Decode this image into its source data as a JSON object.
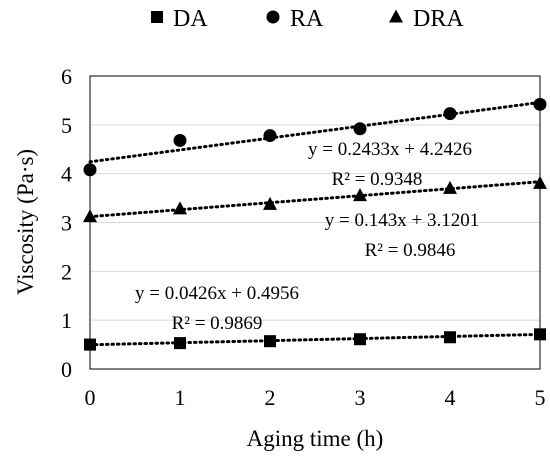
{
  "chart_data": {
    "type": "scatter",
    "xlabel": "Aging time (h)",
    "ylabel": "Viscosity (Pa·s)",
    "xlim": [
      0,
      5
    ],
    "ylim": [
      0,
      6
    ],
    "x_ticks": [
      "0",
      "1",
      "2",
      "3",
      "4",
      "5"
    ],
    "y_ticks": [
      "0",
      "1",
      "2",
      "3",
      "4",
      "5",
      "6"
    ],
    "grid": true,
    "legend_position": "top",
    "series": [
      {
        "name": "DA",
        "marker": "square",
        "x": [
          0,
          1,
          2,
          3,
          4,
          5
        ],
        "values": [
          0.5,
          0.53,
          0.57,
          0.61,
          0.65,
          0.71
        ],
        "trendline": {
          "equation": "y = 0.0426x + 0.4956",
          "r2": "R² = 0.9869",
          "slope": 0.0426,
          "intercept": 0.4956
        }
      },
      {
        "name": "RA",
        "marker": "circle",
        "x": [
          0,
          1,
          2,
          3,
          4,
          5
        ],
        "values": [
          4.08,
          4.68,
          4.78,
          4.92,
          5.23,
          5.42
        ],
        "trendline": {
          "equation": "y = 0.2433x + 4.2426",
          "r2": "R² = 0.9348",
          "slope": 0.2433,
          "intercept": 4.2426
        }
      },
      {
        "name": "DRA",
        "marker": "triangle",
        "x": [
          0,
          1,
          2,
          3,
          4,
          5
        ],
        "values": [
          3.12,
          3.28,
          3.37,
          3.55,
          3.7,
          3.8
        ],
        "trendline": {
          "equation": "y = 0.143x + 3.1201",
          "r2": "R² = 0.9846",
          "slope": 0.143,
          "intercept": 3.1201
        }
      }
    ],
    "colors": {
      "marker": "#000000",
      "grid": "#d9d9d9",
      "axis": "#000000"
    }
  }
}
